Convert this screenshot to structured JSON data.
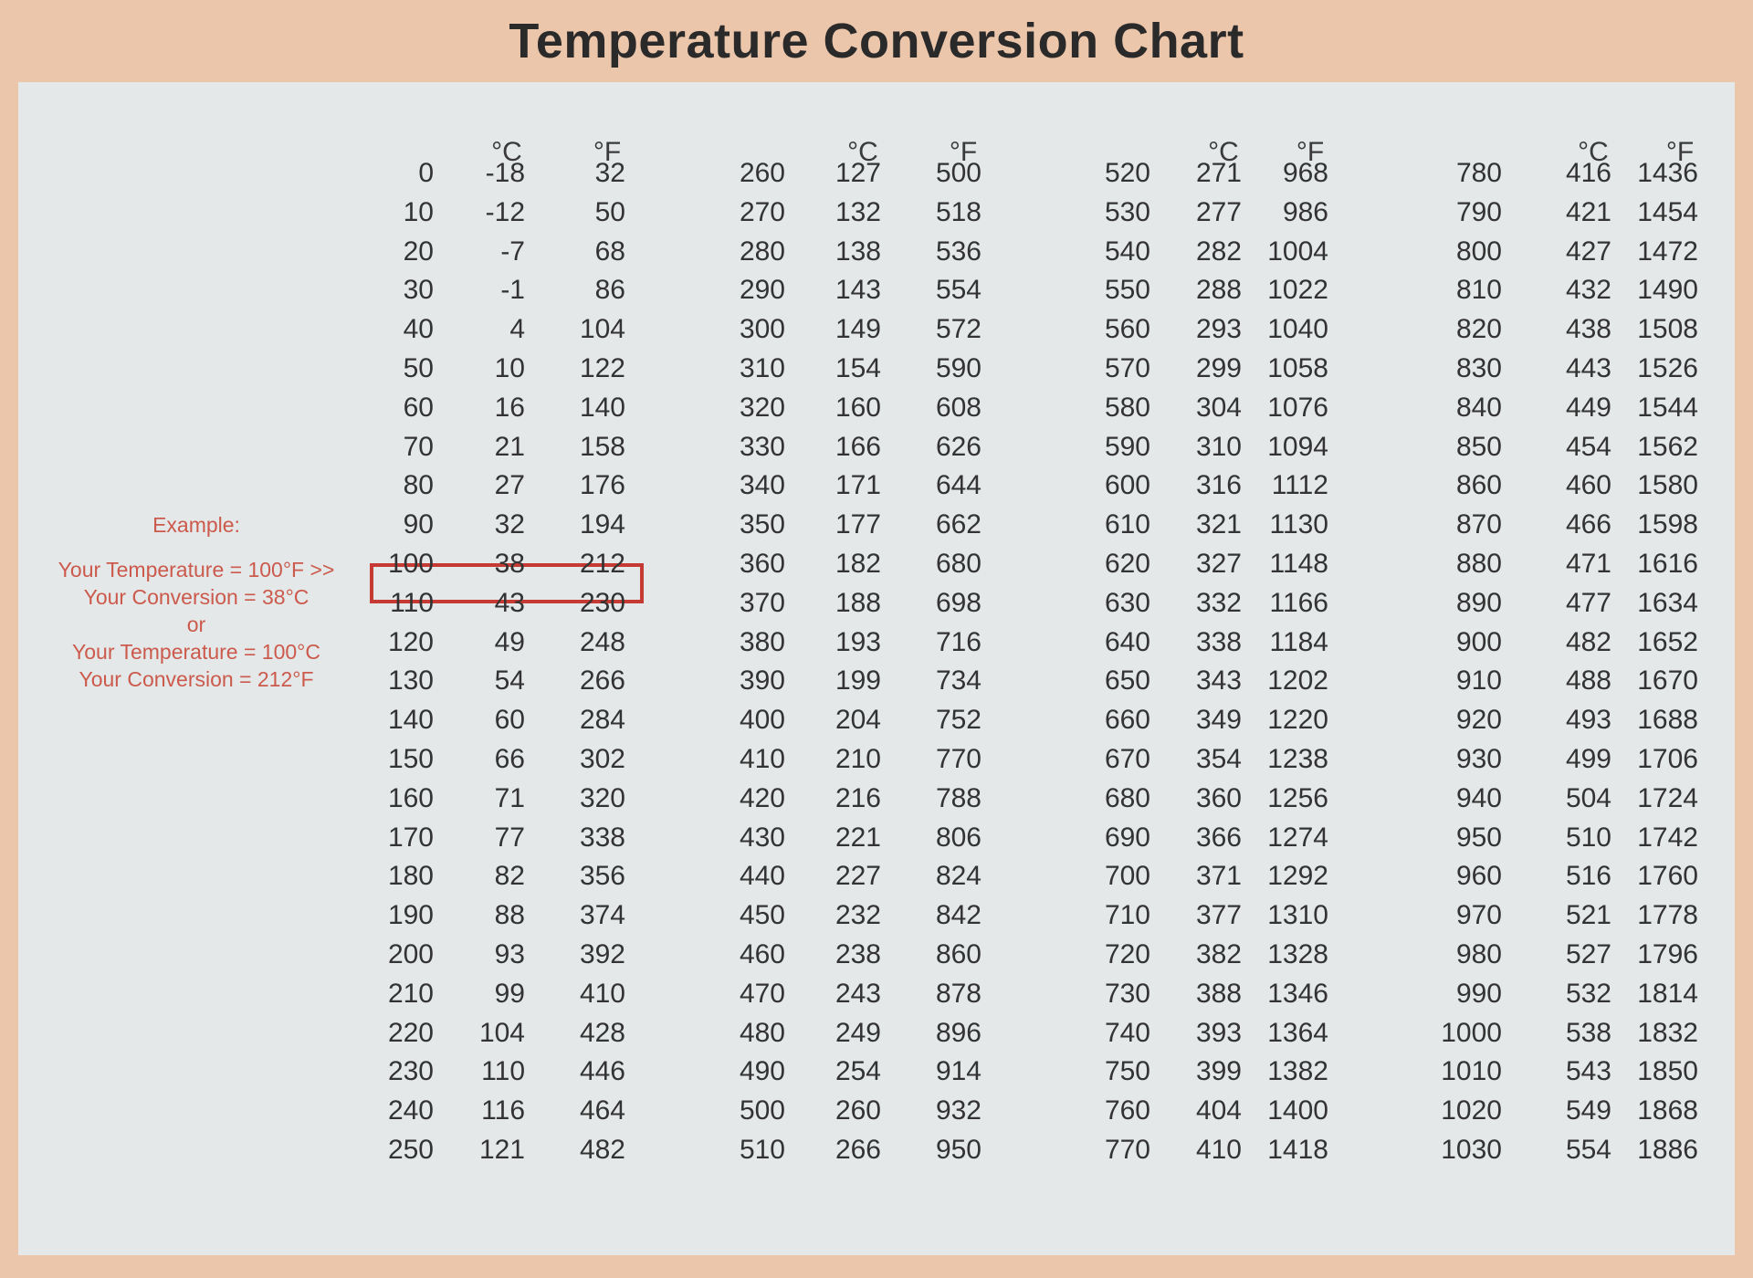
{
  "title": "Temperature Conversion Chart",
  "headers": {
    "celsius": "°C",
    "fahrenheit": "°F"
  },
  "example": {
    "heading": "Example:",
    "lines": [
      "Your Temperature = 100°F >>",
      "Your Conversion = 38°C",
      "or",
      "Your Temperature = 100°C",
      "Your Conversion = 212°F"
    ]
  },
  "highlighted_row": {
    "group": 0,
    "row": 10
  },
  "accent_color": "#c53a33",
  "groups": [
    {
      "rows": [
        [
          "0",
          "-18",
          "32"
        ],
        [
          "10",
          "-12",
          "50"
        ],
        [
          "20",
          "-7",
          "68"
        ],
        [
          "30",
          "-1",
          "86"
        ],
        [
          "40",
          "4",
          "104"
        ],
        [
          "50",
          "10",
          "122"
        ],
        [
          "60",
          "16",
          "140"
        ],
        [
          "70",
          "21",
          "158"
        ],
        [
          "80",
          "27",
          "176"
        ],
        [
          "90",
          "32",
          "194"
        ],
        [
          "100",
          "38",
          "212"
        ],
        [
          "110",
          "43",
          "230"
        ],
        [
          "120",
          "49",
          "248"
        ],
        [
          "130",
          "54",
          "266"
        ],
        [
          "140",
          "60",
          "284"
        ],
        [
          "150",
          "66",
          "302"
        ],
        [
          "160",
          "71",
          "320"
        ],
        [
          "170",
          "77",
          "338"
        ],
        [
          "180",
          "82",
          "356"
        ],
        [
          "190",
          "88",
          "374"
        ],
        [
          "200",
          "93",
          "392"
        ],
        [
          "210",
          "99",
          "410"
        ],
        [
          "220",
          "104",
          "428"
        ],
        [
          "230",
          "110",
          "446"
        ],
        [
          "240",
          "116",
          "464"
        ],
        [
          "250",
          "121",
          "482"
        ]
      ]
    },
    {
      "rows": [
        [
          "260",
          "127",
          "500"
        ],
        [
          "270",
          "132",
          "518"
        ],
        [
          "280",
          "138",
          "536"
        ],
        [
          "290",
          "143",
          "554"
        ],
        [
          "300",
          "149",
          "572"
        ],
        [
          "310",
          "154",
          "590"
        ],
        [
          "320",
          "160",
          "608"
        ],
        [
          "330",
          "166",
          "626"
        ],
        [
          "340",
          "171",
          "644"
        ],
        [
          "350",
          "177",
          "662"
        ],
        [
          "360",
          "182",
          "680"
        ],
        [
          "370",
          "188",
          "698"
        ],
        [
          "380",
          "193",
          "716"
        ],
        [
          "390",
          "199",
          "734"
        ],
        [
          "400",
          "204",
          "752"
        ],
        [
          "410",
          "210",
          "770"
        ],
        [
          "420",
          "216",
          "788"
        ],
        [
          "430",
          "221",
          "806"
        ],
        [
          "440",
          "227",
          "824"
        ],
        [
          "450",
          "232",
          "842"
        ],
        [
          "460",
          "238",
          "860"
        ],
        [
          "470",
          "243",
          "878"
        ],
        [
          "480",
          "249",
          "896"
        ],
        [
          "490",
          "254",
          "914"
        ],
        [
          "500",
          "260",
          "932"
        ],
        [
          "510",
          "266",
          "950"
        ]
      ]
    },
    {
      "rows": [
        [
          "520",
          "271",
          "968"
        ],
        [
          "530",
          "277",
          "986"
        ],
        [
          "540",
          "282",
          "1004"
        ],
        [
          "550",
          "288",
          "1022"
        ],
        [
          "560",
          "293",
          "1040"
        ],
        [
          "570",
          "299",
          "1058"
        ],
        [
          "580",
          "304",
          "1076"
        ],
        [
          "590",
          "310",
          "1094"
        ],
        [
          "600",
          "316",
          "1112"
        ],
        [
          "610",
          "321",
          "1130"
        ],
        [
          "620",
          "327",
          "1148"
        ],
        [
          "630",
          "332",
          "1166"
        ],
        [
          "640",
          "338",
          "1184"
        ],
        [
          "650",
          "343",
          "1202"
        ],
        [
          "660",
          "349",
          "1220"
        ],
        [
          "670",
          "354",
          "1238"
        ],
        [
          "680",
          "360",
          "1256"
        ],
        [
          "690",
          "366",
          "1274"
        ],
        [
          "700",
          "371",
          "1292"
        ],
        [
          "710",
          "377",
          "1310"
        ],
        [
          "720",
          "382",
          "1328"
        ],
        [
          "730",
          "388",
          "1346"
        ],
        [
          "740",
          "393",
          "1364"
        ],
        [
          "750",
          "399",
          "1382"
        ],
        [
          "760",
          "404",
          "1400"
        ],
        [
          "770",
          "410",
          "1418"
        ]
      ]
    },
    {
      "rows": [
        [
          "780",
          "416",
          "1436"
        ],
        [
          "790",
          "421",
          "1454"
        ],
        [
          "800",
          "427",
          "1472"
        ],
        [
          "810",
          "432",
          "1490"
        ],
        [
          "820",
          "438",
          "1508"
        ],
        [
          "830",
          "443",
          "1526"
        ],
        [
          "840",
          "449",
          "1544"
        ],
        [
          "850",
          "454",
          "1562"
        ],
        [
          "860",
          "460",
          "1580"
        ],
        [
          "870",
          "466",
          "1598"
        ],
        [
          "880",
          "471",
          "1616"
        ],
        [
          "890",
          "477",
          "1634"
        ],
        [
          "900",
          "482",
          "1652"
        ],
        [
          "910",
          "488",
          "1670"
        ],
        [
          "920",
          "493",
          "1688"
        ],
        [
          "930",
          "499",
          "1706"
        ],
        [
          "940",
          "504",
          "1724"
        ],
        [
          "950",
          "510",
          "1742"
        ],
        [
          "960",
          "516",
          "1760"
        ],
        [
          "970",
          "521",
          "1778"
        ],
        [
          "980",
          "527",
          "1796"
        ],
        [
          "990",
          "532",
          "1814"
        ],
        [
          "1000",
          "538",
          "1832"
        ],
        [
          "1010",
          "543",
          "1850"
        ],
        [
          "1020",
          "549",
          "1868"
        ],
        [
          "1030",
          "554",
          "1886"
        ]
      ]
    }
  ]
}
